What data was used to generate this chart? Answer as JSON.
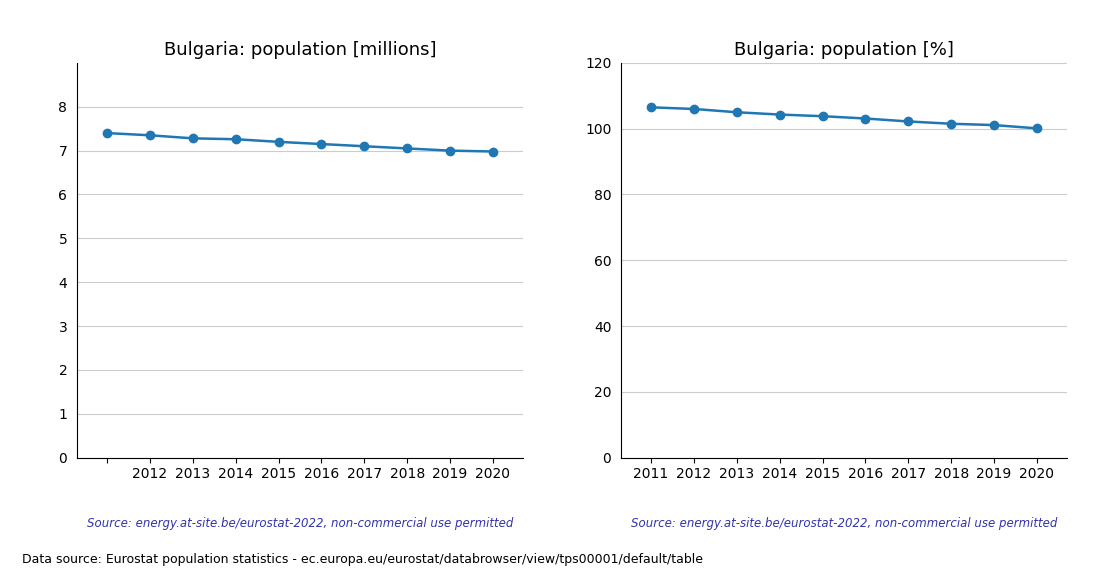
{
  "years": [
    2011,
    2012,
    2013,
    2014,
    2015,
    2016,
    2017,
    2018,
    2019,
    2020
  ],
  "millions": [
    7.4,
    7.35,
    7.28,
    7.26,
    7.2,
    7.15,
    7.1,
    7.05,
    7.0,
    6.98
  ],
  "percent": [
    106.5,
    106.0,
    105.0,
    104.3,
    103.8,
    103.1,
    102.2,
    101.5,
    101.1,
    100.1
  ],
  "title_millions": "Bulgaria: population [millions]",
  "title_percent": "Bulgaria: population [%]",
  "source_text": "Source: energy.at-site.be/eurostat-2022, non-commercial use permitted",
  "footer_text": "Data source: Eurostat population statistics - ec.europa.eu/eurostat/databrowser/view/tps00001/default/table",
  "line_color": "#1f77b4",
  "source_color": "#3333aa",
  "ylim_millions": [
    0,
    9
  ],
  "ylim_percent": [
    0,
    120
  ],
  "yticks_millions": [
    0,
    1,
    2,
    3,
    4,
    5,
    6,
    7,
    8
  ],
  "yticks_percent": [
    0,
    20,
    40,
    60,
    80,
    100,
    120
  ],
  "xticks": [
    2011,
    2012,
    2013,
    2014,
    2015,
    2016,
    2017,
    2018,
    2019,
    2020
  ],
  "xlim": [
    2010.3,
    2020.7
  ],
  "marker_size": 6,
  "line_width": 1.8,
  "bg_color": "#ffffff",
  "grid_color": "#cccccc",
  "spine_color": "#000000"
}
